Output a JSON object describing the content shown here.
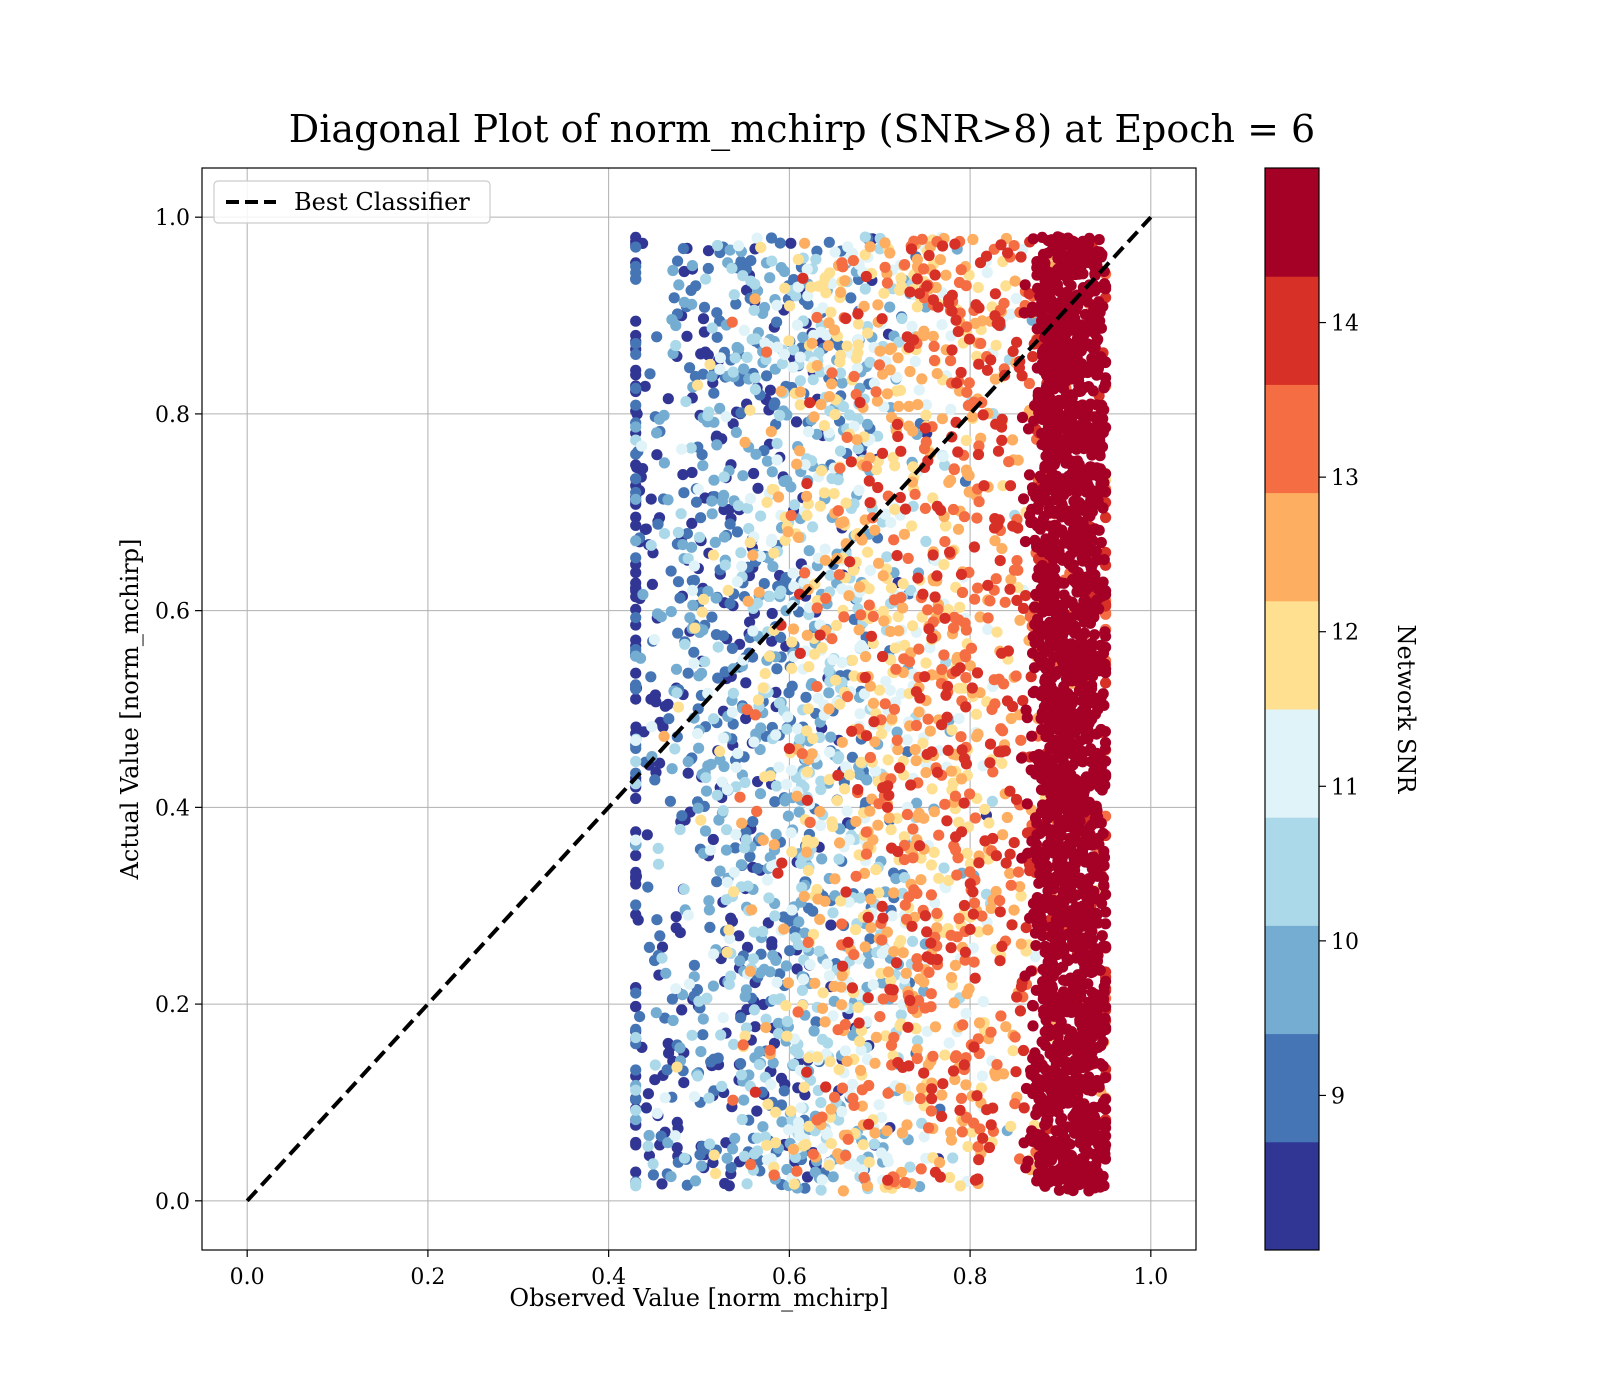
{
  "chart_data": {
    "type": "scatter",
    "title": "Diagonal Plot of norm_mchirp (SNR>8) at Epoch = 6",
    "xlabel": "Observed Value [norm_mchirp]",
    "ylabel": "Actual Value [norm_mchirp]",
    "xlim": [
      -0.05,
      1.05
    ],
    "ylim": [
      -0.05,
      1.05
    ],
    "x_ticks": [
      "0.0",
      "0.2",
      "0.4",
      "0.6",
      "0.8",
      "1.0"
    ],
    "y_ticks": [
      "0.0",
      "0.2",
      "0.4",
      "0.6",
      "0.8",
      "1.0"
    ],
    "grid": true,
    "legend": {
      "placement": "top-left",
      "entries": [
        "Best Classifier"
      ]
    },
    "reference_line": {
      "name": "Best Classifier",
      "style": "dashed",
      "color": "#000000",
      "x": [
        0.0,
        1.0
      ],
      "y": [
        0.0,
        1.0
      ]
    },
    "scatter_description": {
      "x_range": [
        0.43,
        0.95
      ],
      "y_range": [
        0.0,
        0.99
      ],
      "trend": "x increases with SNR: low SNR points (blue) spread from x≈0.43–0.85, high SNR points (red) concentrated at x≈0.85–0.95"
    },
    "colorbar": {
      "label": "Network SNR",
      "range": [
        8,
        15
      ],
      "ticks": [
        "9",
        "10",
        "11",
        "12",
        "13",
        "14"
      ],
      "levels": [
        8,
        8.7,
        9.4,
        10.1,
        10.8,
        11.5,
        12.2,
        12.9,
        13.6,
        14.3,
        15
      ],
      "colors": [
        "#313695",
        "#4575b4",
        "#74add1",
        "#abd9e9",
        "#e0f3f8",
        "#fee090",
        "#fdae61",
        "#f46d43",
        "#d73027",
        "#a50026"
      ]
    }
  }
}
